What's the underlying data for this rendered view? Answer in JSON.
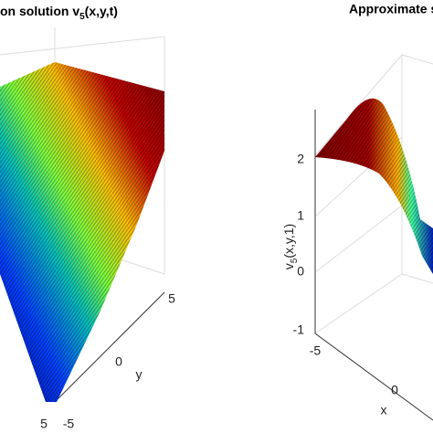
{
  "left_panel": {
    "title": {
      "main": "on solution v",
      "subscript": "5",
      "rest": "(x,y,t)"
    },
    "y_ticks": [
      "5",
      "0",
      "-5"
    ],
    "y_label": "y",
    "x_ticks": [
      "5"
    ]
  },
  "right_panel": {
    "title": "Approximate s",
    "z_ticks": [
      "2",
      "1",
      "0",
      "-1"
    ],
    "z_label": {
      "main": "v",
      "subscript": "5",
      "rest": "(x,y,1)"
    },
    "x_ticks": [
      "-5",
      "0"
    ],
    "x_label": "x"
  }
}
